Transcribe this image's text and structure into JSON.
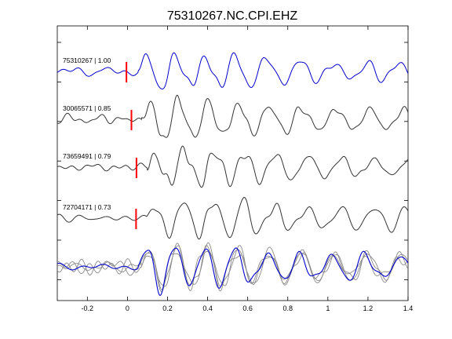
{
  "chart_data": {
    "type": "line",
    "title": "75310267.NC.CPI.EHZ",
    "xlabel": "",
    "ylabel": "",
    "xlim": [
      -0.35,
      1.4
    ],
    "xticks": [
      -0.2,
      0,
      0.2,
      0.4,
      0.6,
      0.8,
      1,
      1.2,
      1.4
    ],
    "xtick_labels": [
      "-0.2",
      "0",
      "0.2",
      "0.4",
      "0.6",
      "0.8",
      "1",
      "1.2",
      "1.4"
    ],
    "grid": false,
    "legend": "none",
    "colors": {
      "primary": "#0000cc",
      "other": "#333333",
      "overlay_other": "#8a8a8a",
      "pick": "#ff0000"
    },
    "traces": [
      {
        "label": "75310267 | 1.00",
        "event_id": "75310267",
        "correlation": "1.00",
        "pick_time": -0.005,
        "delay": 0.0,
        "color": "#0000cc"
      },
      {
        "label": "30065571 | 0.85",
        "event_id": "30065571",
        "correlation": "0.85",
        "pick_time": 0.02,
        "delay": 0.015,
        "color": "#333333"
      },
      {
        "label": "73659491 | 0.79",
        "event_id": "73659491",
        "correlation": "0.79",
        "pick_time": 0.045,
        "delay": 0.045,
        "color": "#333333"
      },
      {
        "label": "72704171 | 0.73",
        "event_id": "72704171",
        "correlation": "0.73",
        "pick_time": 0.043,
        "delay": 0.04,
        "color": "#333333"
      }
    ],
    "overlay": {
      "description_series": [
        "75310267",
        "30065571",
        "73659491",
        "72704171"
      ]
    }
  }
}
